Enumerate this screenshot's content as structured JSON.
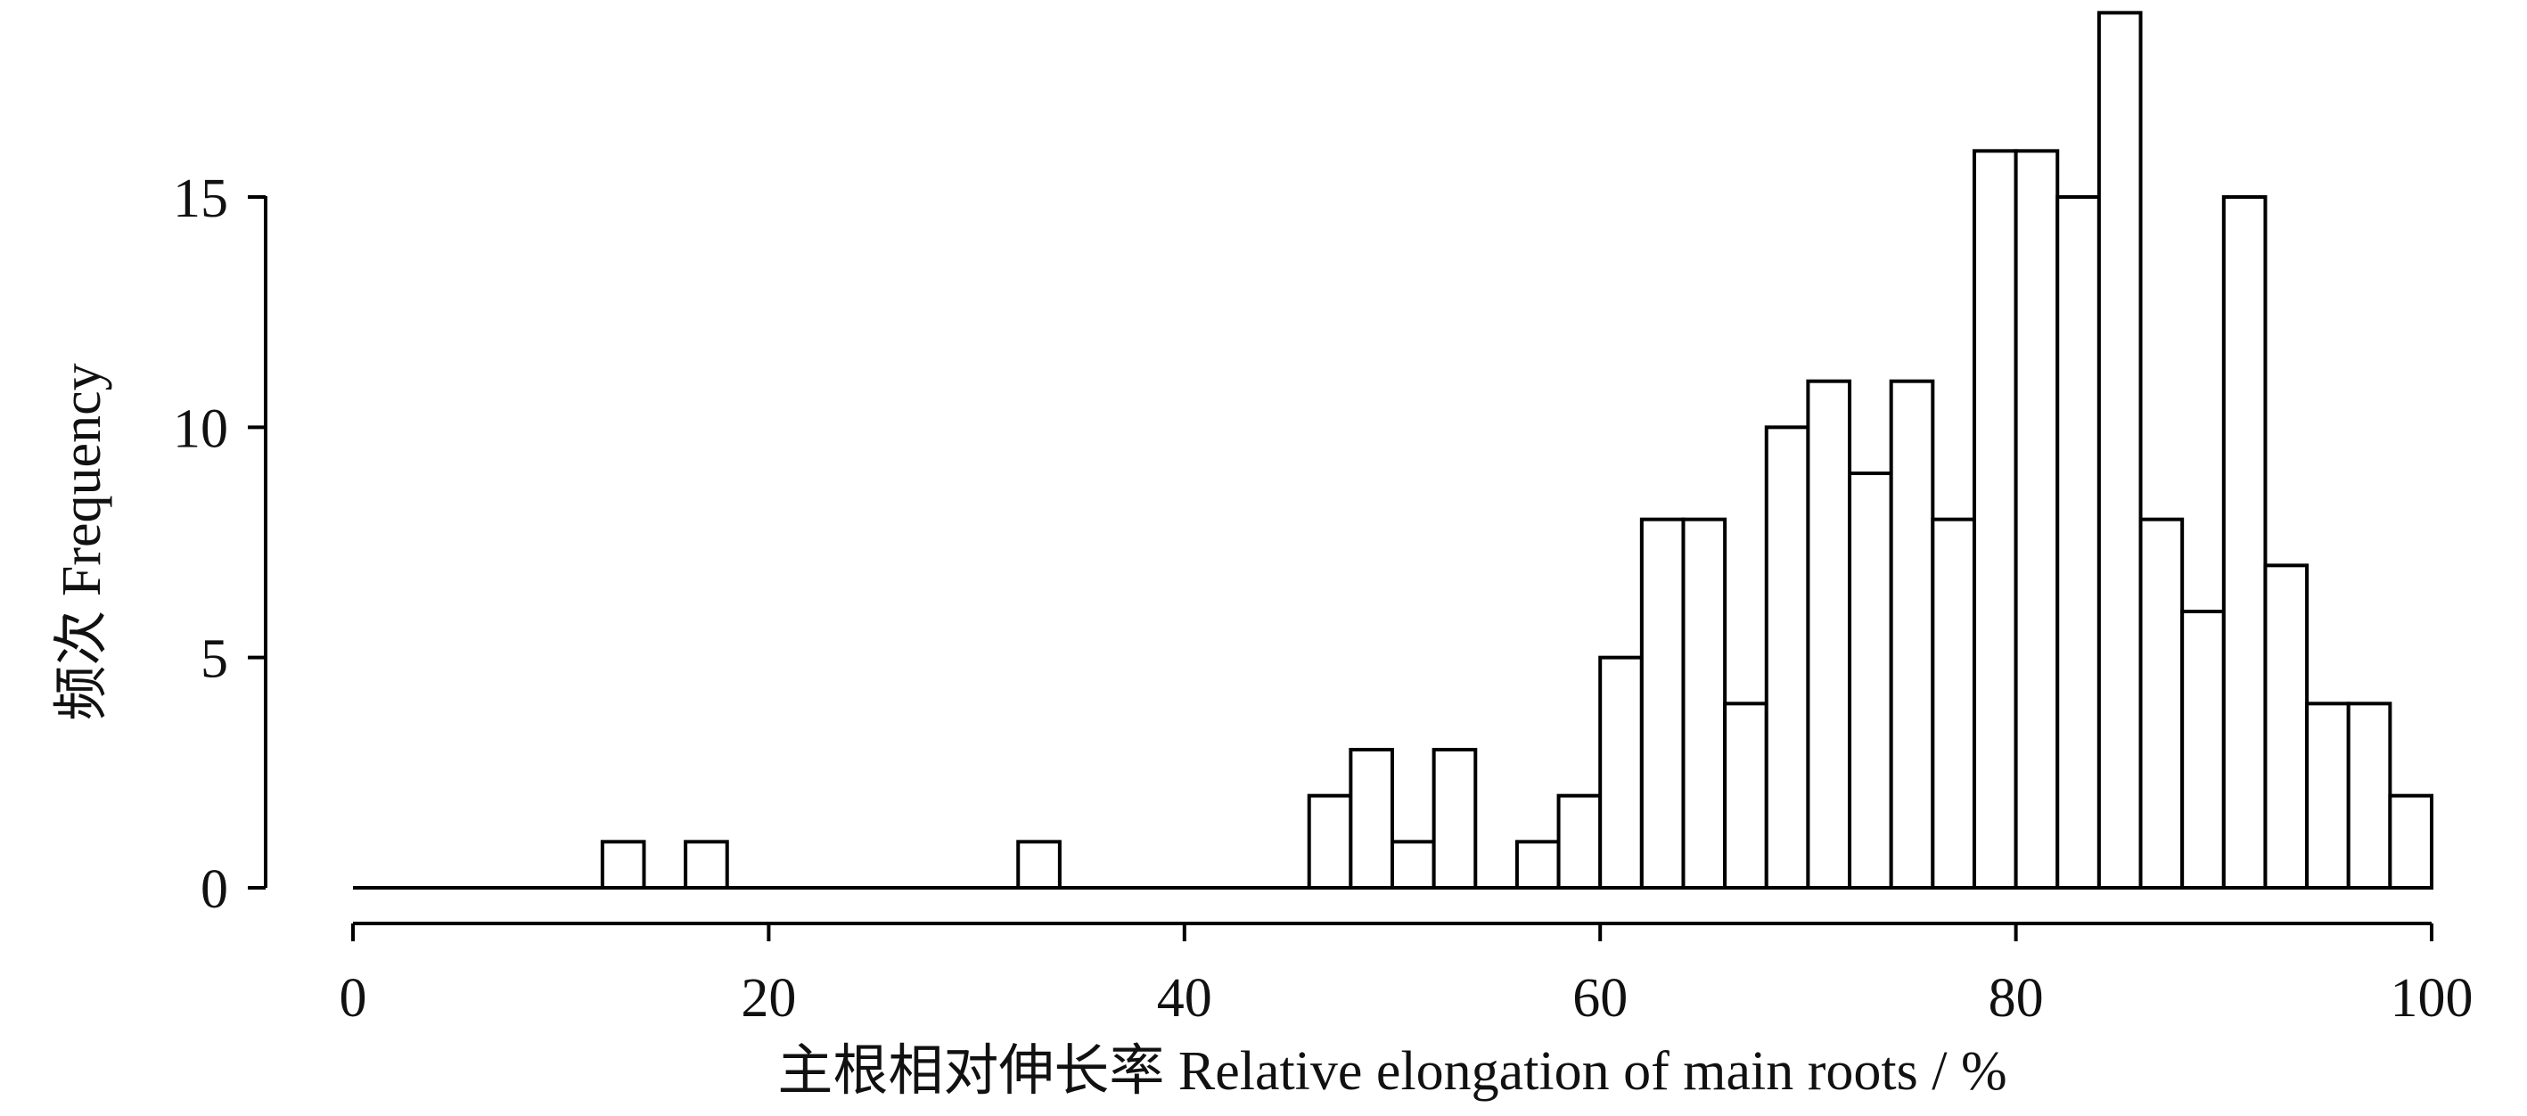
{
  "chart_data": {
    "type": "bar",
    "subtype": "histogram",
    "xlabel": "主根相对伸长率 Relative elongation of main roots / %",
    "ylabel": "频次 Frequency",
    "xlim": [
      0,
      100
    ],
    "ylim": [
      0,
      19
    ],
    "x_ticks": [
      0,
      20,
      40,
      60,
      80,
      100
    ],
    "y_ticks": [
      0,
      5,
      10,
      15
    ],
    "bin_width": 2,
    "bins": [
      {
        "start": 12,
        "end": 14,
        "count": 1
      },
      {
        "start": 16,
        "end": 18,
        "count": 1
      },
      {
        "start": 32,
        "end": 34,
        "count": 1
      },
      {
        "start": 46,
        "end": 48,
        "count": 2
      },
      {
        "start": 48,
        "end": 50,
        "count": 3
      },
      {
        "start": 50,
        "end": 52,
        "count": 1
      },
      {
        "start": 52,
        "end": 54,
        "count": 3
      },
      {
        "start": 56,
        "end": 58,
        "count": 1
      },
      {
        "start": 58,
        "end": 60,
        "count": 2
      },
      {
        "start": 60,
        "end": 62,
        "count": 5
      },
      {
        "start": 62,
        "end": 64,
        "count": 8
      },
      {
        "start": 64,
        "end": 66,
        "count": 8
      },
      {
        "start": 66,
        "end": 68,
        "count": 4
      },
      {
        "start": 68,
        "end": 70,
        "count": 10
      },
      {
        "start": 70,
        "end": 72,
        "count": 11
      },
      {
        "start": 72,
        "end": 74,
        "count": 9
      },
      {
        "start": 74,
        "end": 76,
        "count": 11
      },
      {
        "start": 76,
        "end": 78,
        "count": 8
      },
      {
        "start": 78,
        "end": 80,
        "count": 16
      },
      {
        "start": 80,
        "end": 82,
        "count": 16
      },
      {
        "start": 82,
        "end": 84,
        "count": 15
      },
      {
        "start": 84,
        "end": 86,
        "count": 19
      },
      {
        "start": 86,
        "end": 88,
        "count": 8
      },
      {
        "start": 88,
        "end": 90,
        "count": 6
      },
      {
        "start": 90,
        "end": 92,
        "count": 15
      },
      {
        "start": 92,
        "end": 94,
        "count": 7
      },
      {
        "start": 94,
        "end": 96,
        "count": 4
      },
      {
        "start": 96,
        "end": 98,
        "count": 4
      },
      {
        "start": 98,
        "end": 100,
        "count": 2
      }
    ],
    "zero_baseline_range": [
      0,
      100
    ],
    "grid": false,
    "colors": {
      "bar_fill": "#ffffff",
      "bar_stroke": "#000000"
    }
  }
}
